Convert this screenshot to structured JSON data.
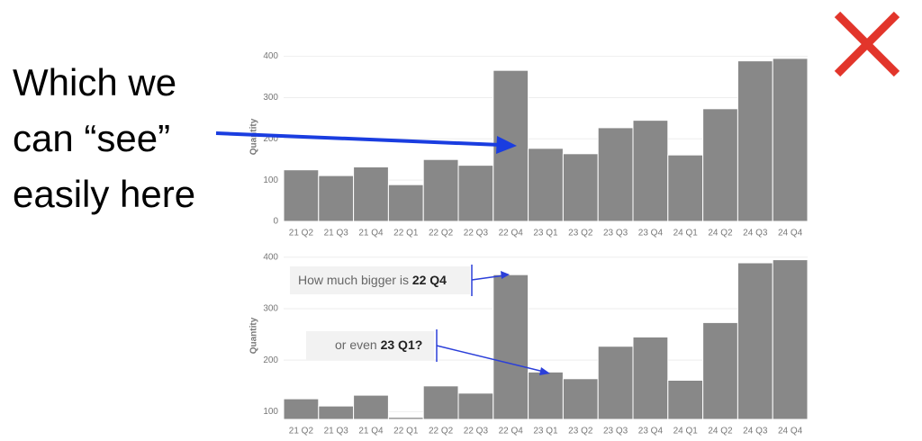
{
  "annotation": [
    "Which we",
    "can “see”",
    "easily here"
  ],
  "chart_data": [
    {
      "type": "bar",
      "y_label": "Quantity",
      "categories": [
        "21 Q2",
        "21 Q3",
        "21 Q4",
        "22 Q1",
        "22 Q2",
        "22 Q3",
        "22 Q4",
        "23 Q1",
        "23 Q2",
        "23 Q3",
        "23 Q4",
        "24 Q1",
        "24 Q2",
        "24 Q3",
        "24 Q4"
      ],
      "values": [
        125,
        111,
        132,
        89,
        150,
        136,
        366,
        177,
        164,
        227,
        245,
        161,
        273,
        389,
        395
      ],
      "color": "#888888",
      "ylim": [
        0,
        410
      ],
      "yticks": [
        0,
        100,
        200,
        300,
        400
      ],
      "grid": true
    },
    {
      "type": "bar",
      "y_label": "Quantity",
      "categories": [
        "21 Q2",
        "21 Q3",
        "21 Q4",
        "22 Q1",
        "22 Q2",
        "22 Q3",
        "22 Q4",
        "23 Q1",
        "23 Q2",
        "23 Q3",
        "23 Q4",
        "24 Q1",
        "24 Q2",
        "24 Q3",
        "24 Q4"
      ],
      "values": [
        125,
        111,
        132,
        89,
        150,
        136,
        366,
        177,
        164,
        227,
        245,
        161,
        273,
        389,
        395
      ],
      "color": "#888888",
      "ylim": [
        85,
        410
      ],
      "yticks": [
        100,
        200,
        300,
        400
      ],
      "grid": true,
      "annotations": [
        {
          "text": "How much bigger is",
          "bold": "22 Q4"
        },
        {
          "text": "or even",
          "bold": "23 Q1?"
        }
      ]
    }
  ]
}
